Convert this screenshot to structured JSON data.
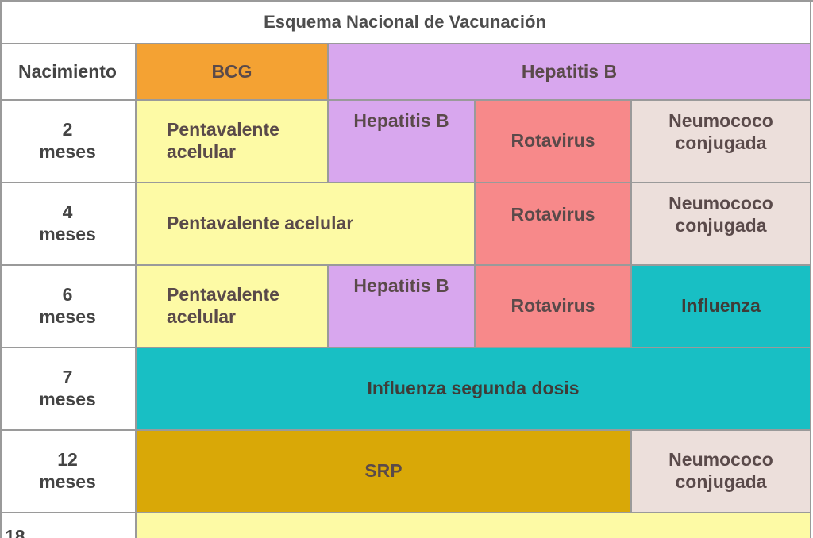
{
  "table": {
    "title": "Esquema Nacional de Vacunación",
    "rows": [
      {
        "age": "Nacimiento",
        "age_number": "",
        "age_unit": "",
        "cells": [
          "BCG",
          "Hepatitis B"
        ]
      },
      {
        "age_number": "2",
        "age_unit": "meses",
        "cells": [
          "Pentavalente acelular",
          "Hepatitis B",
          "Rotavirus",
          "Neumococo conjugada"
        ]
      },
      {
        "age_number": "4",
        "age_unit": "meses",
        "cells": [
          "Pentavalente acelular",
          "Rotavirus",
          "Neumococo conjugada"
        ]
      },
      {
        "age_number": "6",
        "age_unit": "meses",
        "cells": [
          "Pentavalente acelular",
          "Hepatitis B",
          "Rotavirus",
          "Influenza"
        ]
      },
      {
        "age_number": "7",
        "age_unit": "meses",
        "cells": [
          "Influenza segunda dosis"
        ]
      },
      {
        "age_number": "12",
        "age_unit": "meses",
        "cells": [
          "SRP",
          "Neumococo conjugada"
        ]
      },
      {
        "age_number": "18",
        "age_unit": "",
        "cells": [
          ""
        ]
      }
    ]
  },
  "colors": {
    "bcg": "#f4a233",
    "hepatitis_b": "#d8a7ee",
    "pentavalente": "#fdfaa5",
    "rotavirus": "#f7898a",
    "neumococo": "#ecdfdb",
    "influenza": "#18bfc4",
    "srp": "#d9a807"
  }
}
